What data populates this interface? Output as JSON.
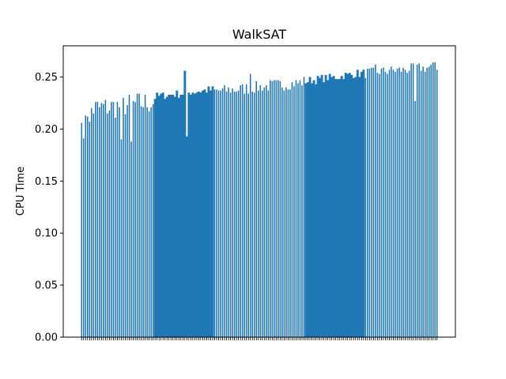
{
  "chart_data": {
    "type": "bar",
    "title": "WalkSAT",
    "xlabel": "",
    "ylabel": "CPU Time",
    "ylim": [
      0,
      0.28
    ],
    "yticks": [
      0.0,
      0.05,
      0.1,
      0.15,
      0.2,
      0.25
    ],
    "ytick_labels": [
      "0.00",
      "0.05",
      "0.10",
      "0.15",
      "0.20",
      "0.25"
    ],
    "bar_color": "#1f77b4",
    "grid": false,
    "legend": "none",
    "series": [
      {
        "segments": [
          {
            "count": 37,
            "start": 0.218,
            "end": 0.226,
            "jitter": 0.012,
            "gap": true
          },
          {
            "count": 30,
            "start": 0.231,
            "end": 0.238,
            "jitter": 0.004,
            "gap": false
          },
          {
            "count": 46,
            "start": 0.236,
            "end": 0.245,
            "jitter": 0.006,
            "gap": true
          },
          {
            "count": 30,
            "start": 0.246,
            "end": 0.254,
            "jitter": 0.004,
            "gap": false
          },
          {
            "count": 37,
            "start": 0.254,
            "end": 0.26,
            "jitter": 0.005,
            "gap": true
          }
        ],
        "outliers": [
          {
            "index": 1,
            "value": 0.191
          },
          {
            "index": 4,
            "value": 0.207
          },
          {
            "index": 20,
            "value": 0.19
          },
          {
            "index": 25,
            "value": 0.188
          },
          {
            "index": 52,
            "value": 0.256
          },
          {
            "index": 53,
            "value": 0.193
          },
          {
            "index": 85,
            "value": 0.253
          },
          {
            "index": 148,
            "value": 0.262
          },
          {
            "index": 155,
            "value": 0.257
          },
          {
            "index": 168,
            "value": 0.227
          },
          {
            "index": 178,
            "value": 0.264
          }
        ]
      }
    ]
  }
}
